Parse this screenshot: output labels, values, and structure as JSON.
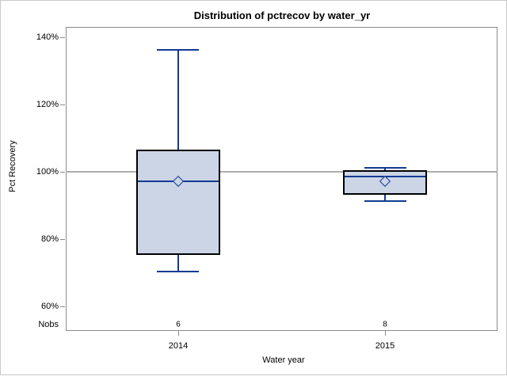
{
  "chart_data": {
    "type": "box",
    "title": "Distribution of pctrecov by water_yr",
    "xlabel": "Water year",
    "ylabel": "Pct Recovery",
    "categories": [
      "2014",
      "2015"
    ],
    "nobs_label": "Nobs",
    "nobs": [
      "6",
      "8"
    ],
    "series": [
      {
        "category": "2014",
        "n": 6,
        "min": 70.4,
        "q1": 75.3,
        "median": 97.3,
        "q3": 106.5,
        "max": 136.2,
        "mean": 97.2
      },
      {
        "category": "2015",
        "n": 8,
        "min": 91.4,
        "q1": 93.4,
        "median": 98.5,
        "q3": 100.6,
        "max": 101.2,
        "mean": 97.1
      }
    ],
    "yticks": [
      {
        "label": "140%",
        "value": 140
      },
      {
        "label": "120%",
        "value": 120
      },
      {
        "label": "100%",
        "value": 100
      },
      {
        "label": "80%",
        "value": 80
      },
      {
        "label": "60%",
        "value": 60
      }
    ],
    "ylim": [
      52.7,
      143.1
    ],
    "refline": 100,
    "grid": false,
    "legend": "none",
    "x_positions": [
      0.26,
      0.74
    ],
    "colors": {
      "box_fill": "#ccd5e5",
      "box_border": "#000000",
      "line": "#123a93",
      "refline": "#adadad",
      "frame": "#8a8a8a",
      "outer_border": "#c9c9c9",
      "text": "#000000"
    }
  }
}
